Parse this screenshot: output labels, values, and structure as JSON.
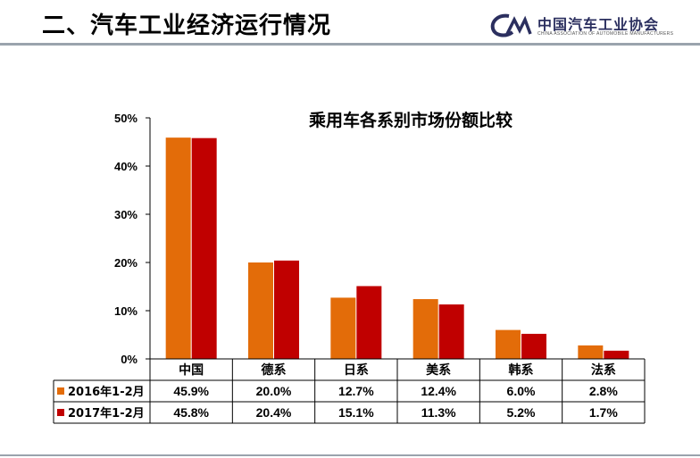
{
  "slide": {
    "title": "二、汽车工业经济运行情况",
    "logo_cn": "中国汽车工业协会",
    "logo_en": "CHINA ASSOCIATION OF AUTOMOBILE MANUFACTURERS",
    "logo_mark_text": "CM"
  },
  "colors": {
    "series_2016": "#e36c09",
    "series_2017": "#c00000",
    "logo": "#2b2f5f"
  },
  "chart_data": {
    "type": "bar",
    "title": "乘用车各系别市场份额比较",
    "categories": [
      "中国",
      "德系",
      "日系",
      "美系",
      "韩系",
      "法系"
    ],
    "ylim": [
      0,
      50
    ],
    "yticks": [
      "0%",
      "10%",
      "20%",
      "30%",
      "40%",
      "50%"
    ],
    "grid": false,
    "legend": "data-table",
    "series": [
      {
        "name": "2016年1-2月",
        "values": [
          45.9,
          20.0,
          12.7,
          12.4,
          6.0,
          2.8
        ],
        "labels": [
          "45.9%",
          "20.0%",
          "12.7%",
          "12.4%",
          "6.0%",
          "2.8%"
        ]
      },
      {
        "name": "2017年1-2月",
        "values": [
          45.8,
          20.4,
          15.1,
          11.3,
          5.2,
          1.7
        ],
        "labels": [
          "45.8%",
          "20.4%",
          "15.1%",
          "11.3%",
          "5.2%",
          "1.7%"
        ]
      }
    ]
  }
}
